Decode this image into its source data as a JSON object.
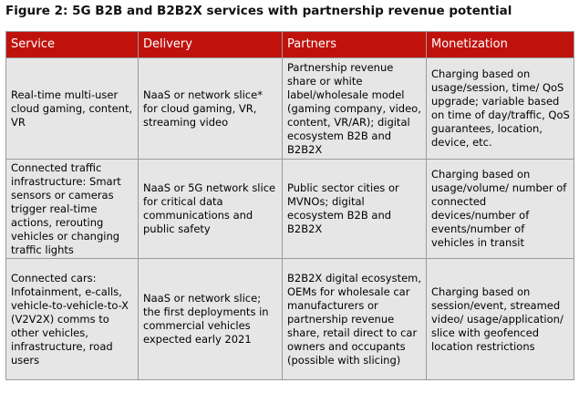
{
  "figure": {
    "title": "Figure 2: 5G B2B and B2B2X services with partnership revenue potential"
  },
  "table": {
    "headers": [
      "Service",
      "Delivery",
      "Partners",
      "Monetization"
    ],
    "rows": [
      [
        "Real-time multi-user cloud gaming, content, VR",
        "NaaS or network slice* for cloud gaming, VR, streaming video",
        "Partnership revenue share or white label/wholesale model (gaming company, video, content, VR/AR); digital ecosystem B2B and B2B2X",
        "Charging based on usage/session, time/ QoS upgrade; variable based on time of day/traffic, QoS guarantees, location, device, etc."
      ],
      [
        "Connected traffic infrastructure: Smart sensors or cameras trigger real-time actions, rerouting vehicles or changing traffic lights",
        "NaaS or 5G network slice for critical data communications and public safety",
        "Public sector cities or MVNOs; digital ecosystem B2B and B2B2X",
        "Charging based on usage/volume/ number of connected devices/number of events/number of vehicles in transit"
      ],
      [
        "Connected cars: Infotainment, e-calls, vehicle-to-vehicle-to-X (V2V2X) comms to other vehicles, infrastructure, road users",
        "NaaS or network slice; the first deployments in commercial vehicles expected early 2021",
        "B2B2X digital ecosystem, OEMs for wholesale car manufacturers or partnership revenue share, retail direct to car owners and occupants (possible with slicing)",
        "Charging based on session/event, streamed video/ usage/application/ slice with geofenced location restrictions"
      ]
    ]
  },
  "colors": {
    "header_bg": "#c0120d",
    "header_text": "#ffffff",
    "cell_bg": "#e6e6e6",
    "border": "#9a9a9a"
  }
}
